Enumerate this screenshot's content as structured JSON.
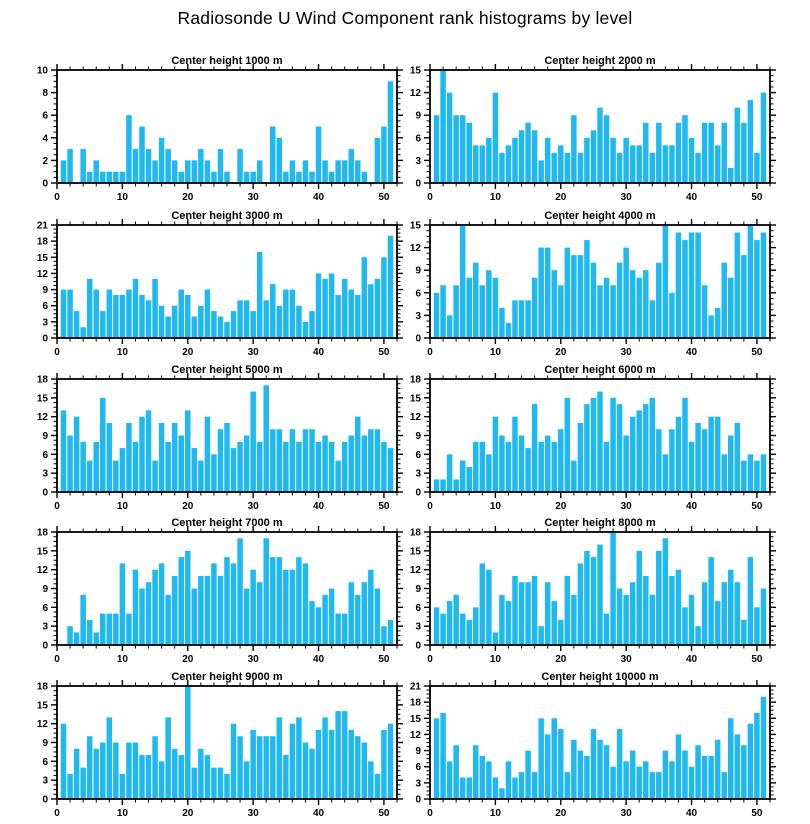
{
  "title": "Radiosonde U Wind Component rank histograms by level",
  "colors": {
    "bar": "#1FB8EF",
    "axis": "#000000",
    "background": "#FFFFFF"
  },
  "chart_data": [
    {
      "type": "bar",
      "title": "Center height 1000 m",
      "xlabel": "",
      "ylabel": "",
      "xlim": [
        0,
        52
      ],
      "xticks": [
        0,
        10,
        20,
        30,
        40,
        50
      ],
      "xminor_step": 2,
      "ylim": [
        0,
        10
      ],
      "ytick_step": 2,
      "x_first_rank": 1,
      "values": [
        2,
        3,
        0,
        3,
        1,
        2,
        1,
        1,
        1,
        1,
        6,
        3,
        5,
        3,
        2,
        4,
        3,
        2,
        1,
        2,
        2,
        3,
        2,
        1,
        3,
        1,
        0,
        3,
        1,
        1,
        2,
        0,
        5,
        4,
        1,
        2,
        1,
        2,
        1,
        5,
        2,
        1,
        2,
        2,
        3,
        2,
        1,
        0,
        4,
        5,
        9
      ]
    },
    {
      "type": "bar",
      "title": "Center height 2000 m",
      "xlabel": "",
      "ylabel": "",
      "xlim": [
        0,
        52
      ],
      "xticks": [
        0,
        10,
        20,
        30,
        40,
        50
      ],
      "xminor_step": 2,
      "ylim": [
        0,
        15
      ],
      "ytick_step": 3,
      "x_first_rank": 1,
      "values": [
        9,
        15,
        12,
        9,
        9,
        8,
        5,
        5,
        6,
        12,
        4,
        5,
        6,
        7,
        8,
        7,
        3,
        6,
        4,
        5,
        4,
        9,
        4,
        6,
        7,
        10,
        9,
        6,
        4,
        6,
        5,
        5,
        8,
        4,
        8,
        5,
        5,
        8,
        9,
        6,
        4,
        8,
        8,
        5,
        8,
        2,
        10,
        8,
        11,
        4,
        12
      ]
    },
    {
      "type": "bar",
      "title": "Center height 3000 m",
      "xlabel": "",
      "ylabel": "",
      "xlim": [
        0,
        52
      ],
      "xticks": [
        0,
        10,
        20,
        30,
        40,
        50
      ],
      "xminor_step": 2,
      "ylim": [
        0,
        21
      ],
      "ytick_step": 3,
      "x_first_rank": 1,
      "values": [
        9,
        9,
        5,
        2,
        11,
        9,
        5,
        9,
        8,
        8,
        9,
        11,
        8,
        7,
        11,
        6,
        4,
        6,
        9,
        8,
        4,
        6,
        9,
        5,
        4,
        3,
        5,
        7,
        7,
        5,
        16,
        7,
        10,
        6,
        9,
        9,
        6,
        3,
        5,
        12,
        11,
        12,
        8,
        11,
        9,
        8,
        15,
        10,
        11,
        15,
        19
      ]
    },
    {
      "type": "bar",
      "title": "Center height 4000 m",
      "xlabel": "",
      "ylabel": "",
      "xlim": [
        0,
        52
      ],
      "xticks": [
        0,
        10,
        20,
        30,
        40,
        50
      ],
      "xminor_step": 2,
      "ylim": [
        0,
        15
      ],
      "ytick_step": 3,
      "x_first_rank": 1,
      "values": [
        6,
        7,
        3,
        7,
        15,
        8,
        10,
        7,
        9,
        8,
        4,
        2,
        5,
        5,
        5,
        8,
        12,
        12,
        9,
        7,
        12,
        11,
        11,
        13,
        10,
        7,
        8,
        7,
        10,
        12,
        9,
        8,
        9,
        5,
        10,
        15,
        6,
        14,
        13,
        14,
        14,
        7,
        3,
        4,
        10,
        8,
        14,
        11,
        15,
        13,
        14
      ]
    },
    {
      "type": "bar",
      "title": "Center height 5000 m",
      "xlabel": "",
      "ylabel": "",
      "xlim": [
        0,
        52
      ],
      "xticks": [
        0,
        10,
        20,
        30,
        40,
        50
      ],
      "xminor_step": 2,
      "ylim": [
        0,
        18
      ],
      "ytick_step": 3,
      "x_first_rank": 1,
      "values": [
        13,
        9,
        12,
        8,
        5,
        8,
        15,
        11,
        5,
        7,
        11,
        8,
        12,
        13,
        5,
        11,
        8,
        11,
        9,
        13,
        7,
        5,
        12,
        6,
        10,
        11,
        7,
        8,
        9,
        16,
        8,
        17,
        10,
        10,
        8,
        10,
        8,
        10,
        10,
        8,
        9,
        8,
        5,
        8,
        9,
        12,
        9,
        10,
        10,
        8,
        7
      ]
    },
    {
      "type": "bar",
      "title": "Center height 6000 m",
      "xlabel": "",
      "ylabel": "",
      "xlim": [
        0,
        52
      ],
      "xticks": [
        0,
        10,
        20,
        30,
        40,
        50
      ],
      "xminor_step": 2,
      "ylim": [
        0,
        18
      ],
      "ytick_step": 3,
      "x_first_rank": 1,
      "values": [
        2,
        2,
        6,
        2,
        5,
        4,
        8,
        8,
        6,
        12,
        9,
        8,
        12,
        9,
        7,
        14,
        8,
        9,
        8,
        10,
        15,
        5,
        11,
        14,
        15,
        16,
        8,
        15,
        14,
        9,
        12,
        13,
        14,
        15,
        10,
        6,
        10,
        12,
        15,
        8,
        11,
        10,
        12,
        12,
        6,
        9,
        11,
        5,
        6,
        5,
        6
      ]
    },
    {
      "type": "bar",
      "title": "Center height 7000 m",
      "xlabel": "",
      "ylabel": "",
      "xlim": [
        0,
        52
      ],
      "xticks": [
        0,
        10,
        20,
        30,
        40,
        50
      ],
      "xminor_step": 2,
      "ylim": [
        0,
        18
      ],
      "ytick_step": 3,
      "x_first_rank": 1,
      "values": [
        0,
        3,
        2,
        8,
        4,
        2,
        5,
        5,
        5,
        13,
        5,
        12,
        9,
        10,
        12,
        13,
        8,
        11,
        14,
        15,
        9,
        11,
        11,
        13,
        11,
        14,
        13,
        17,
        9,
        12,
        10,
        17,
        14,
        14,
        12,
        12,
        14,
        13,
        7,
        6,
        8,
        9,
        5,
        5,
        10,
        8,
        10,
        12,
        9,
        3,
        4
      ]
    },
    {
      "type": "bar",
      "title": "Center height 8000 m",
      "xlabel": "",
      "ylabel": "",
      "xlim": [
        0,
        52
      ],
      "xticks": [
        0,
        10,
        20,
        30,
        40,
        50
      ],
      "xminor_step": 2,
      "ylim": [
        0,
        18
      ],
      "ytick_step": 3,
      "x_first_rank": 1,
      "values": [
        6,
        5,
        7,
        8,
        5,
        4,
        6,
        13,
        12,
        2,
        8,
        7,
        11,
        10,
        10,
        11,
        3,
        10,
        7,
        4,
        11,
        8,
        13,
        15,
        14,
        16,
        5,
        18,
        9,
        8,
        10,
        15,
        11,
        8,
        15,
        17,
        11,
        12,
        6,
        8,
        3,
        10,
        14,
        7,
        10,
        12,
        10,
        4,
        14,
        6,
        9
      ]
    },
    {
      "type": "bar",
      "title": "Center height 9000 m",
      "xlabel": "",
      "ylabel": "",
      "xlim": [
        0,
        52
      ],
      "xticks": [
        0,
        10,
        20,
        30,
        40,
        50
      ],
      "xminor_step": 2,
      "ylim": [
        0,
        18
      ],
      "ytick_step": 3,
      "x_first_rank": 1,
      "values": [
        12,
        4,
        8,
        5,
        10,
        8,
        9,
        13,
        9,
        4,
        9,
        9,
        7,
        7,
        10,
        6,
        13,
        8,
        7,
        18,
        5,
        8,
        7,
        5,
        5,
        4,
        12,
        10,
        6,
        11,
        10,
        10,
        10,
        13,
        7,
        12,
        13,
        9,
        8,
        11,
        13,
        11,
        14,
        14,
        11,
        10,
        9,
        6,
        4,
        11,
        12
      ]
    },
    {
      "type": "bar",
      "title": "Center height 10000 m",
      "xlabel": "",
      "ylabel": "",
      "xlim": [
        0,
        52
      ],
      "xticks": [
        0,
        10,
        20,
        30,
        40,
        50
      ],
      "xminor_step": 2,
      "ylim": [
        0,
        21
      ],
      "ytick_step": 3,
      "x_first_rank": 1,
      "values": [
        15,
        16,
        7,
        10,
        4,
        4,
        10,
        8,
        7,
        4,
        2,
        7,
        4,
        5,
        9,
        5,
        15,
        12,
        15,
        13,
        5,
        11,
        9,
        8,
        13,
        11,
        10,
        6,
        13,
        7,
        9,
        6,
        7,
        5,
        5,
        9,
        7,
        12,
        9,
        6,
        10,
        8,
        8,
        11,
        5,
        15,
        12,
        10,
        14,
        16,
        19
      ]
    }
  ]
}
